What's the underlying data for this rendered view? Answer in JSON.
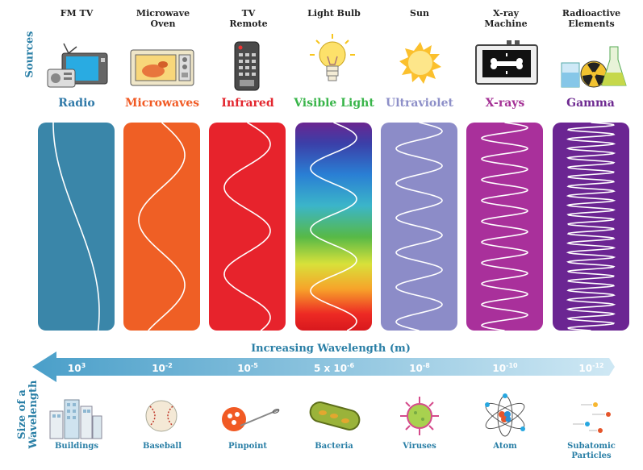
{
  "side": {
    "sources": "Sources",
    "size": "Size of a\nWavelength"
  },
  "sources": [
    {
      "label": "FM   TV",
      "icon": "radio-tv-icon"
    },
    {
      "label": "Microwave\nOven",
      "icon": "microwave-oven-icon"
    },
    {
      "label": "TV\nRemote",
      "icon": "tv-remote-icon"
    },
    {
      "label": "Light Bulb",
      "icon": "light-bulb-icon"
    },
    {
      "label": "Sun",
      "icon": "sun-icon"
    },
    {
      "label": "X-ray\nMachine",
      "icon": "xray-machine-icon"
    },
    {
      "label": "Radioactive\nElements",
      "icon": "radioactive-elements-icon"
    }
  ],
  "bands": [
    {
      "name": "Radio",
      "color": "#2f79a8",
      "fill": "#3a86a9",
      "cycles": 0.55
    },
    {
      "name": "Microwaves",
      "color": "#f15a24",
      "fill": "#ef5f25",
      "cycles": 1.6
    },
    {
      "name": "Infrared",
      "color": "#e3262e",
      "fill": "#e7232c",
      "cycles": 2.4
    },
    {
      "name": "Visible Light",
      "color": "#39b54a",
      "fill": "spectrum",
      "cycles": 3.4
    },
    {
      "name": "Ultraviolet",
      "color": "#8d8fc8",
      "fill": "#8c8cc8",
      "cycles": 6
    },
    {
      "name": "X-rays",
      "color": "#a43195",
      "fill": "#a9309b",
      "cycles": 10
    },
    {
      "name": "Gamma",
      "color": "#6e2a91",
      "fill": "#6b2592",
      "cycles": 22
    }
  ],
  "axis": {
    "title": "Increasing Wavelength (m)",
    "ticks": [
      {
        "base": "10",
        "sup": "3"
      },
      {
        "base": "10",
        "sup": "-2"
      },
      {
        "base": "10",
        "sup": "-5"
      },
      {
        "base": "5 x 10",
        "sup": "-6"
      },
      {
        "base": "10",
        "sup": "-8"
      },
      {
        "base": "10",
        "sup": "-10"
      },
      {
        "base": "10",
        "sup": "-12"
      }
    ]
  },
  "objects": [
    {
      "label": "Buildings",
      "icon": "buildings-icon"
    },
    {
      "label": "Baseball",
      "icon": "baseball-icon"
    },
    {
      "label": "Pinpoint",
      "icon": "pinpoint-icon"
    },
    {
      "label": "Bacteria",
      "icon": "bacteria-icon"
    },
    {
      "label": "Viruses",
      "icon": "virus-icon"
    },
    {
      "label": "Atom",
      "icon": "atom-icon"
    },
    {
      "label": "Subatomic\nParticles",
      "icon": "subatomic-particles-icon"
    }
  ]
}
